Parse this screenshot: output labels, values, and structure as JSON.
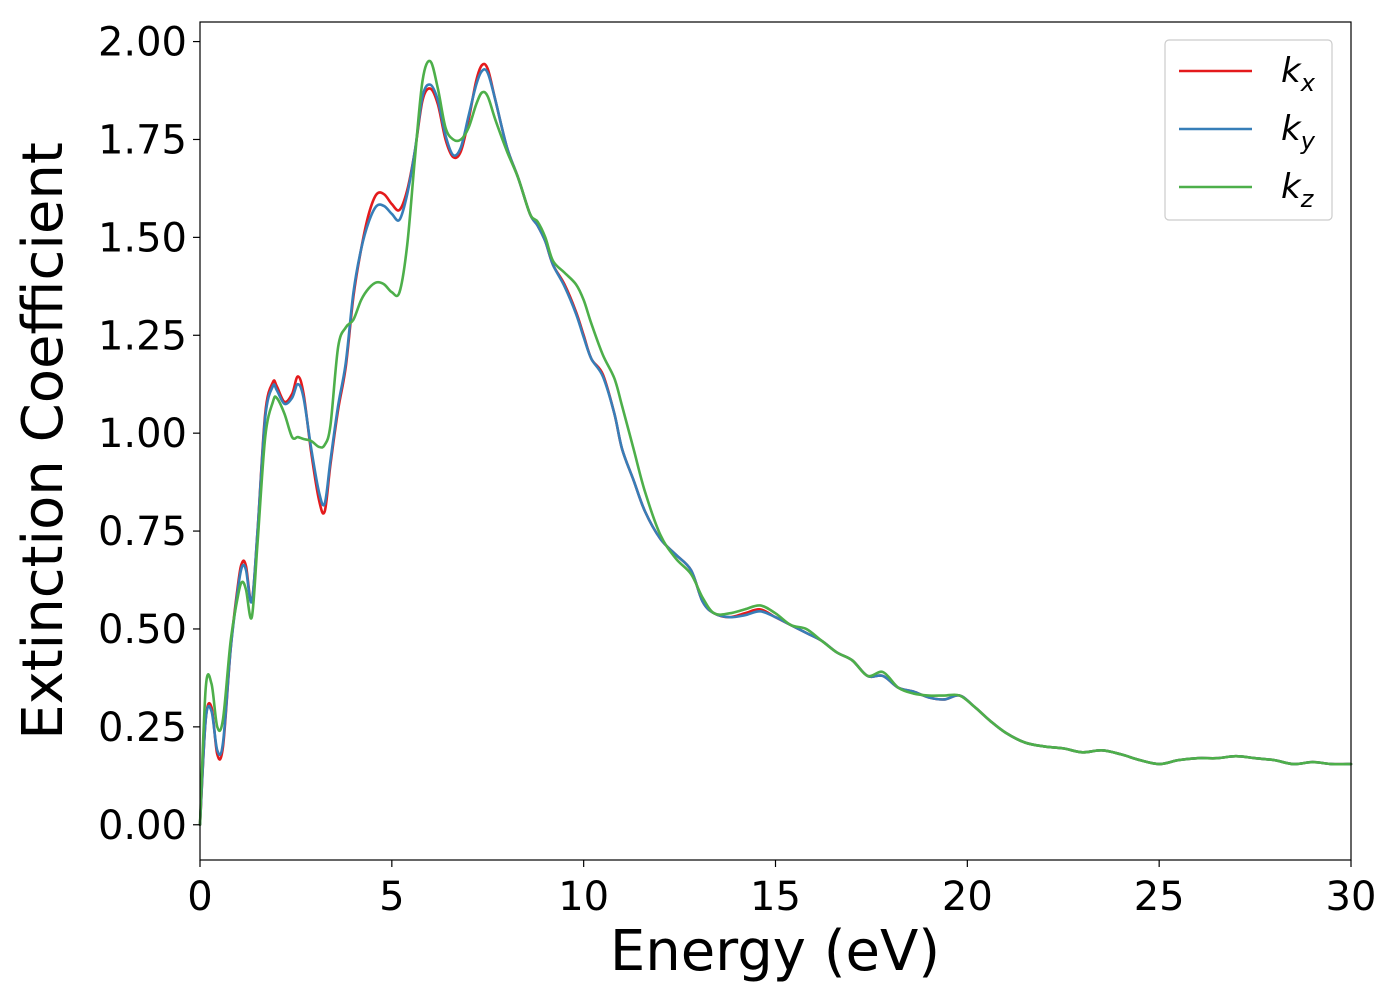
{
  "chart_data": {
    "type": "line",
    "title": "",
    "xlabel": "Energy (eV)",
    "ylabel": "Extinction Coefficient",
    "xlim": [
      0,
      30
    ],
    "ylim": [
      -0.09,
      2.05
    ],
    "xticks": [
      0,
      5,
      10,
      15,
      20,
      25,
      30
    ],
    "xtick_labels": [
      "0",
      "5",
      "10",
      "15",
      "20",
      "25",
      "30"
    ],
    "yticks": [
      0.0,
      0.25,
      0.5,
      0.75,
      1.0,
      1.25,
      1.5,
      1.75,
      2.0
    ],
    "ytick_labels": [
      "0.00",
      "0.25",
      "0.50",
      "0.75",
      "1.00",
      "1.25",
      "1.50",
      "1.75",
      "2.00"
    ],
    "grid": false,
    "legend_position": "top-right",
    "series": [
      {
        "name": "k",
        "subscript": "x",
        "color": "#e41a1c",
        "x": [
          0,
          0.15,
          0.3,
          0.45,
          0.6,
          0.8,
          1.0,
          1.1,
          1.2,
          1.35,
          1.5,
          1.7,
          1.9,
          2.0,
          2.2,
          2.4,
          2.55,
          2.7,
          2.9,
          3.1,
          3.25,
          3.4,
          3.6,
          3.8,
          4.0,
          4.2,
          4.4,
          4.6,
          4.8,
          5.0,
          5.2,
          5.4,
          5.6,
          5.8,
          6.0,
          6.2,
          6.4,
          6.6,
          6.8,
          7.0,
          7.2,
          7.35,
          7.5,
          7.7,
          8.0,
          8.3,
          8.6,
          8.8,
          9.0,
          9.2,
          9.5,
          9.8,
          10.0,
          10.2,
          10.5,
          10.8,
          11.0,
          11.3,
          11.6,
          12.0,
          12.4,
          12.8,
          13.1,
          13.4,
          13.8,
          14.2,
          14.6,
          15.0,
          15.4,
          15.8,
          16.2,
          16.6,
          17.0,
          17.4,
          17.8,
          18.2,
          18.6,
          19.0,
          19.4,
          19.8,
          20.2,
          20.6,
          21.0,
          21.5,
          22.0,
          22.5,
          23.0,
          23.5,
          24.0,
          24.5,
          25.0,
          25.5,
          26.0,
          26.5,
          27.0,
          27.5,
          28.0,
          28.5,
          29.0,
          29.5,
          30.0
        ],
        "y": [
          0.0,
          0.27,
          0.3,
          0.18,
          0.2,
          0.45,
          0.62,
          0.67,
          0.66,
          0.57,
          0.75,
          1.05,
          1.13,
          1.12,
          1.08,
          1.1,
          1.145,
          1.1,
          0.95,
          0.83,
          0.8,
          0.92,
          1.06,
          1.17,
          1.35,
          1.47,
          1.56,
          1.61,
          1.61,
          1.585,
          1.57,
          1.62,
          1.72,
          1.85,
          1.88,
          1.84,
          1.75,
          1.705,
          1.72,
          1.8,
          1.9,
          1.94,
          1.93,
          1.85,
          1.73,
          1.65,
          1.56,
          1.53,
          1.49,
          1.43,
          1.38,
          1.31,
          1.25,
          1.19,
          1.15,
          1.05,
          0.96,
          0.88,
          0.8,
          0.73,
          0.69,
          0.65,
          0.57,
          0.54,
          0.53,
          0.54,
          0.55,
          0.53,
          0.51,
          0.49,
          0.47,
          0.44,
          0.42,
          0.38,
          0.38,
          0.35,
          0.34,
          0.325,
          0.32,
          0.33,
          0.3,
          0.265,
          0.235,
          0.21,
          0.2,
          0.195,
          0.185,
          0.19,
          0.18,
          0.165,
          0.155,
          0.165,
          0.17,
          0.17,
          0.175,
          0.17,
          0.165,
          0.155,
          0.16,
          0.155,
          0.155
        ]
      },
      {
        "name": "k",
        "subscript": "y",
        "color": "#377eb8",
        "x": [
          0,
          0.15,
          0.3,
          0.45,
          0.6,
          0.8,
          1.0,
          1.1,
          1.2,
          1.35,
          1.5,
          1.7,
          1.9,
          2.0,
          2.2,
          2.4,
          2.55,
          2.7,
          2.9,
          3.1,
          3.25,
          3.4,
          3.6,
          3.8,
          4.0,
          4.2,
          4.4,
          4.6,
          4.8,
          5.0,
          5.2,
          5.4,
          5.6,
          5.8,
          6.0,
          6.2,
          6.4,
          6.6,
          6.8,
          7.0,
          7.2,
          7.35,
          7.5,
          7.7,
          8.0,
          8.3,
          8.6,
          8.8,
          9.0,
          9.2,
          9.5,
          9.8,
          10.0,
          10.2,
          10.5,
          10.8,
          11.0,
          11.3,
          11.6,
          12.0,
          12.4,
          12.8,
          13.1,
          13.4,
          13.8,
          14.2,
          14.6,
          15.0,
          15.4,
          15.8,
          16.2,
          16.6,
          17.0,
          17.4,
          17.8,
          18.2,
          18.6,
          19.0,
          19.4,
          19.8,
          20.2,
          20.6,
          21.0,
          21.5,
          22.0,
          22.5,
          23.0,
          23.5,
          24.0,
          24.5,
          25.0,
          25.5,
          26.0,
          26.5,
          27.0,
          27.5,
          28.0,
          28.5,
          29.0,
          29.5,
          30.0
        ],
        "y": [
          0.0,
          0.27,
          0.29,
          0.19,
          0.21,
          0.45,
          0.61,
          0.66,
          0.65,
          0.57,
          0.75,
          1.04,
          1.12,
          1.11,
          1.075,
          1.09,
          1.125,
          1.09,
          0.96,
          0.85,
          0.82,
          0.93,
          1.07,
          1.18,
          1.36,
          1.47,
          1.54,
          1.58,
          1.58,
          1.56,
          1.545,
          1.61,
          1.72,
          1.86,
          1.89,
          1.85,
          1.76,
          1.71,
          1.73,
          1.81,
          1.89,
          1.925,
          1.92,
          1.85,
          1.73,
          1.65,
          1.56,
          1.53,
          1.49,
          1.43,
          1.375,
          1.305,
          1.245,
          1.19,
          1.145,
          1.05,
          0.96,
          0.88,
          0.8,
          0.73,
          0.69,
          0.65,
          0.57,
          0.54,
          0.53,
          0.535,
          0.545,
          0.53,
          0.51,
          0.49,
          0.47,
          0.44,
          0.42,
          0.38,
          0.38,
          0.35,
          0.34,
          0.325,
          0.32,
          0.33,
          0.3,
          0.265,
          0.235,
          0.21,
          0.2,
          0.195,
          0.185,
          0.19,
          0.18,
          0.165,
          0.155,
          0.165,
          0.17,
          0.17,
          0.175,
          0.17,
          0.165,
          0.155,
          0.16,
          0.155,
          0.155
        ]
      },
      {
        "name": "k",
        "subscript": "z",
        "color": "#4daf4a",
        "x": [
          0,
          0.15,
          0.3,
          0.45,
          0.6,
          0.8,
          1.0,
          1.1,
          1.2,
          1.35,
          1.5,
          1.7,
          1.9,
          2.0,
          2.2,
          2.4,
          2.55,
          2.7,
          2.9,
          3.1,
          3.25,
          3.4,
          3.6,
          3.8,
          4.0,
          4.2,
          4.4,
          4.6,
          4.8,
          5.0,
          5.2,
          5.4,
          5.6,
          5.8,
          6.0,
          6.2,
          6.4,
          6.6,
          6.8,
          7.0,
          7.2,
          7.35,
          7.5,
          7.7,
          8.0,
          8.3,
          8.6,
          8.8,
          9.0,
          9.2,
          9.5,
          9.8,
          10.0,
          10.2,
          10.5,
          10.8,
          11.0,
          11.3,
          11.6,
          12.0,
          12.4,
          12.8,
          13.1,
          13.4,
          13.8,
          14.2,
          14.6,
          15.0,
          15.4,
          15.8,
          16.2,
          16.6,
          17.0,
          17.4,
          17.8,
          18.2,
          18.6,
          19.0,
          19.4,
          19.8,
          20.2,
          20.6,
          21.0,
          21.5,
          22.0,
          22.5,
          23.0,
          23.5,
          24.0,
          24.5,
          25.0,
          25.5,
          26.0,
          26.5,
          27.0,
          27.5,
          28.0,
          28.5,
          29.0,
          29.5,
          30.0
        ],
        "y": [
          0.0,
          0.35,
          0.36,
          0.25,
          0.27,
          0.47,
          0.59,
          0.62,
          0.6,
          0.53,
          0.72,
          0.99,
          1.08,
          1.09,
          1.05,
          0.99,
          0.99,
          0.985,
          0.98,
          0.965,
          0.97,
          1.02,
          1.22,
          1.27,
          1.29,
          1.34,
          1.37,
          1.385,
          1.38,
          1.36,
          1.36,
          1.48,
          1.7,
          1.9,
          1.95,
          1.88,
          1.78,
          1.75,
          1.75,
          1.78,
          1.84,
          1.87,
          1.86,
          1.8,
          1.72,
          1.65,
          1.56,
          1.54,
          1.5,
          1.44,
          1.41,
          1.38,
          1.34,
          1.28,
          1.2,
          1.14,
          1.07,
          0.96,
          0.85,
          0.74,
          0.68,
          0.64,
          0.58,
          0.54,
          0.54,
          0.55,
          0.56,
          0.54,
          0.51,
          0.5,
          0.47,
          0.44,
          0.42,
          0.38,
          0.39,
          0.35,
          0.335,
          0.33,
          0.33,
          0.33,
          0.3,
          0.265,
          0.235,
          0.21,
          0.2,
          0.195,
          0.185,
          0.19,
          0.18,
          0.165,
          0.155,
          0.165,
          0.17,
          0.17,
          0.175,
          0.17,
          0.165,
          0.155,
          0.16,
          0.155,
          0.155
        ]
      }
    ]
  }
}
